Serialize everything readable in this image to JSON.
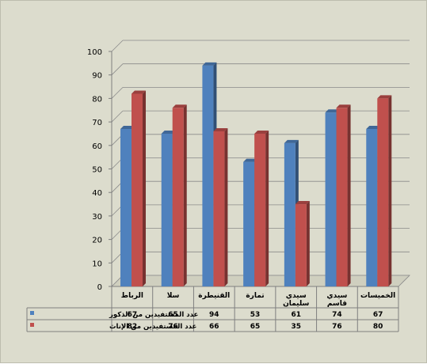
{
  "chart_data": {
    "type": "bar",
    "categories": [
      [
        "الرباط"
      ],
      [
        "سلا"
      ],
      [
        "القنيطرة"
      ],
      [
        "تمارة"
      ],
      [
        "سيدي",
        "سليمان"
      ],
      [
        "سيدي",
        "قاسم"
      ],
      [
        "الخميسات"
      ]
    ],
    "series": [
      {
        "name": "عدد المستفيدين من الذكور",
        "color": "#4f81bd",
        "values": [
          67,
          65,
          94,
          53,
          61,
          74,
          67
        ]
      },
      {
        "name": "عدد المستفيدين من الإناث",
        "color": "#c0504d",
        "values": [
          82,
          76,
          66,
          65,
          35,
          76,
          80
        ]
      }
    ],
    "ylim": [
      0,
      100
    ],
    "yticks": [
      0,
      10,
      20,
      30,
      40,
      50,
      60,
      70,
      80,
      90,
      100
    ],
    "grid": true,
    "data_table": true,
    "background": "#dcdccd"
  }
}
